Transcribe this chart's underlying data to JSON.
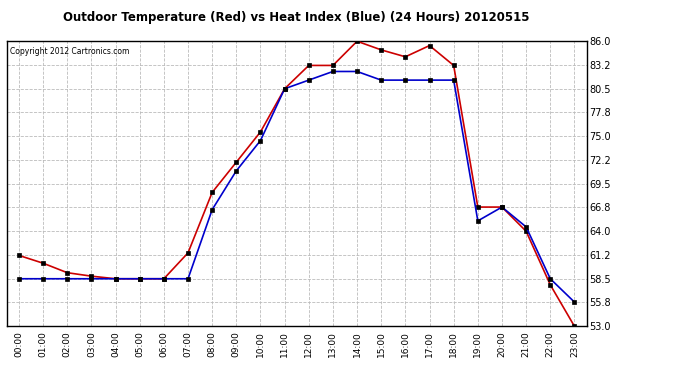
{
  "title": "Outdoor Temperature (Red) vs Heat Index (Blue) (24 Hours) 20120515",
  "copyright": "Copyright 2012 Cartronics.com",
  "background_color": "#ffffff",
  "plot_bg_color": "#ffffff",
  "grid_color": "#bbbbbb",
  "hours": [
    0,
    1,
    2,
    3,
    4,
    5,
    6,
    7,
    8,
    9,
    10,
    11,
    12,
    13,
    14,
    15,
    16,
    17,
    18,
    19,
    20,
    21,
    22,
    23
  ],
  "temp_red": [
    61.2,
    60.3,
    59.2,
    58.8,
    58.5,
    58.5,
    58.5,
    61.5,
    68.5,
    72.0,
    75.5,
    80.5,
    83.2,
    83.2,
    86.0,
    85.0,
    84.2,
    85.5,
    83.2,
    66.8,
    66.8,
    64.0,
    57.8,
    53.0
  ],
  "heat_blue": [
    58.5,
    58.5,
    58.5,
    58.5,
    58.5,
    58.5,
    58.5,
    58.5,
    66.5,
    71.0,
    74.5,
    80.5,
    81.5,
    82.5,
    82.5,
    81.5,
    81.5,
    81.5,
    81.5,
    65.2,
    66.8,
    64.5,
    58.5,
    55.8
  ],
  "ylim_min": 53.0,
  "ylim_max": 86.0,
  "yticks": [
    53.0,
    55.8,
    58.5,
    61.2,
    64.0,
    66.8,
    69.5,
    72.2,
    75.0,
    77.8,
    80.5,
    83.2,
    86.0
  ],
  "xtick_labels": [
    "00:00",
    "01:00",
    "02:00",
    "03:00",
    "04:00",
    "05:00",
    "06:00",
    "07:00",
    "08:00",
    "09:00",
    "10:00",
    "11:00",
    "12:00",
    "13:00",
    "14:00",
    "15:00",
    "16:00",
    "17:00",
    "18:00",
    "19:00",
    "20:00",
    "21:00",
    "22:00",
    "23:00"
  ],
  "red_color": "#cc0000",
  "blue_color": "#0000cc",
  "marker": "s",
  "marker_size": 2.5,
  "line_width": 1.2
}
